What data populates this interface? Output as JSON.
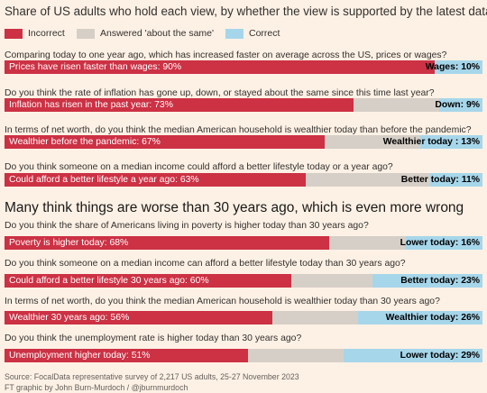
{
  "chart_data": {
    "type": "bar",
    "stacked": true,
    "orientation": "horizontal",
    "title": "Share of US adults who hold each view, by whether the view is supported by the latest data",
    "legend": {
      "placement": "top-left",
      "entries": [
        "Incorrect",
        "Answered 'about the same'",
        "Correct"
      ]
    },
    "colors": {
      "incorrect": "#cc3144",
      "same": "#d6cfc7",
      "correct": "#a6d6ea"
    },
    "xlim": [
      0,
      100
    ],
    "unit": "%",
    "sections": [
      {
        "heading": "",
        "items": [
          {
            "question": "Comparing today to one year ago, which has increased faster on average across the US, prices or wages?",
            "incorrect": 90,
            "same": 0,
            "correct": 10,
            "incorrect_label": "Prices have risen faster than wages: 90%",
            "correct_label": "Wages: 10%"
          },
          {
            "question": "Do you think the rate of inflation has gone up, down, or stayed about the same since this time last year?",
            "incorrect": 73,
            "same": 18,
            "correct": 9,
            "incorrect_label": "Inflation has risen in the past year: 73%",
            "correct_label": "Down: 9%"
          },
          {
            "question": "In terms of net worth, do you think the median American household is wealthier today than before the pandemic?",
            "incorrect": 67,
            "same": 20,
            "correct": 13,
            "incorrect_label": "Wealthier before the pandemic: 67%",
            "correct_label": "Wealthier today : 13%"
          },
          {
            "question": "Do you think someone on a median income could afford a better lifestyle today or a year ago?",
            "incorrect": 63,
            "same": 26,
            "correct": 11,
            "incorrect_label": "Could afford a better lifestyle a year ago: 63%",
            "correct_label": "Better today: 11%"
          }
        ]
      },
      {
        "heading": "Many think things are worse than 30 years ago, which is even more wrong",
        "items": [
          {
            "question": "Do you think the share of Americans living in poverty is higher today than 30 years ago?",
            "incorrect": 68,
            "same": 16,
            "correct": 16,
            "incorrect_label": "Poverty is higher today: 68%",
            "correct_label": "Lower today: 16%"
          },
          {
            "question": "Do you think someone on a median income can afford a better lifestyle today than 30 years ago?",
            "incorrect": 60,
            "same": 17,
            "correct": 23,
            "incorrect_label": "Could afford a better lifestyle 30 years ago: 60%",
            "correct_label": "Better today: 23%"
          },
          {
            "question": "In terms of net worth, do you think the median American household is wealthier today than 30 years ago?",
            "incorrect": 56,
            "same": 18,
            "correct": 26,
            "incorrect_label": "Wealthier 30 years ago: 56%",
            "correct_label": "Wealthier today: 26%"
          },
          {
            "question": "Do you think the unemployment rate is higher today than 30 years ago?",
            "incorrect": 51,
            "same": 20,
            "correct": 29,
            "incorrect_label": "Unemployment higher today: 51%",
            "correct_label": "Lower today: 29%"
          }
        ]
      }
    ],
    "source": "Source: FocalData representative survey of 2,217 US adults, 25-27 November 2023",
    "credit": "FT graphic by John Burn-Murdoch / @jburnmurdoch"
  }
}
